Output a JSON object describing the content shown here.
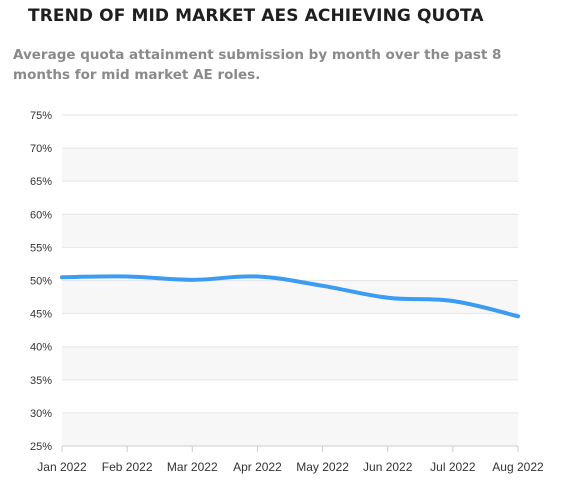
{
  "header": {
    "title": "TREND OF MID MARKET AES ACHIEVING QUOTA",
    "subtitle": "Average quota attainment submission by month over the past 8 months for mid market AE roles."
  },
  "colors": {
    "line": "#3b9cf2",
    "band_shaded": "#f7f7f7",
    "band_plain": "#ffffff",
    "gridline": "#e6e6e6",
    "axis": "#cccccc"
  },
  "chart_data": {
    "type": "line",
    "title": "TREND OF MID MARKET AES ACHIEVING QUOTA",
    "subtitle": "Average quota attainment submission by month over the past 8 months for mid market AE roles.",
    "xlabel": "",
    "ylabel": "",
    "categories": [
      "Jan 2022",
      "Feb 2022",
      "Mar 2022",
      "Apr 2022",
      "May 2022",
      "Jun 2022",
      "Jul 2022",
      "Aug 2022"
    ],
    "yticks": [
      "25%",
      "30%",
      "35%",
      "40%",
      "45%",
      "50%",
      "55%",
      "60%",
      "65%",
      "70%",
      "75%"
    ],
    "ylim": [
      25,
      75
    ],
    "grid": true,
    "legend": "none",
    "series": [
      {
        "values": [
          50.5,
          50.6,
          50.1,
          50.6,
          49.2,
          47.4,
          46.9,
          44.6
        ]
      }
    ]
  }
}
